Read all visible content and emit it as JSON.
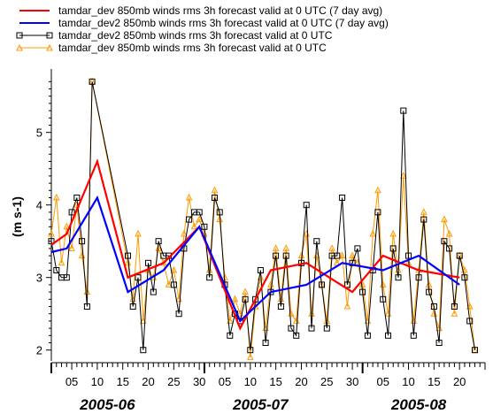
{
  "chart_data": {
    "type": "line",
    "title": "",
    "xlabel": "",
    "ylabel": "(m s-1)",
    "ylim": [
      1.85,
      5.85
    ],
    "yticks": [
      2,
      3,
      4,
      5
    ],
    "x_range": [
      "2005-06-01",
      "2005-08-25"
    ],
    "xtick_labels": [
      {
        "date": "2005-06-05",
        "label": "05"
      },
      {
        "date": "2005-06-10",
        "label": "10"
      },
      {
        "date": "2005-06-15",
        "label": "15"
      },
      {
        "date": "2005-06-20",
        "label": "20"
      },
      {
        "date": "2005-06-25",
        "label": "25"
      },
      {
        "date": "2005-06-30",
        "label": "30"
      },
      {
        "date": "2005-07-05",
        "label": "05"
      },
      {
        "date": "2005-07-10",
        "label": "10"
      },
      {
        "date": "2005-07-15",
        "label": "15"
      },
      {
        "date": "2005-07-20",
        "label": "20"
      },
      {
        "date": "2005-07-25",
        "label": "25"
      },
      {
        "date": "2005-07-30",
        "label": "30"
      },
      {
        "date": "2005-08-05",
        "label": "05"
      },
      {
        "date": "2005-08-10",
        "label": "10"
      },
      {
        "date": "2005-08-15",
        "label": "15"
      },
      {
        "date": "2005-08-20",
        "label": "20"
      }
    ],
    "month_labels": [
      {
        "date": "2005-06-12",
        "label": "2005-06"
      },
      {
        "date": "2005-07-12",
        "label": "2005-07"
      },
      {
        "date": "2005-08-12",
        "label": "2005-08"
      }
    ],
    "legend_position": "top",
    "series": [
      {
        "name": "tamdar_dev 850mb winds rms 3h forecast valid at 0 UTC (7 day avg)",
        "color": "#ff0000",
        "marker": "none",
        "x": [
          "2005-06-01",
          "2005-06-04",
          "2005-06-10",
          "2005-06-16",
          "2005-06-23",
          "2005-06-30",
          "2005-07-08",
          "2005-07-14",
          "2005-07-21",
          "2005-07-30",
          "2005-08-05",
          "2005-08-12",
          "2005-08-20"
        ],
        "y": [
          3.45,
          3.6,
          4.6,
          3.0,
          3.2,
          3.7,
          2.3,
          3.1,
          3.2,
          2.8,
          3.3,
          3.1,
          3.0
        ]
      },
      {
        "name": "tamdar_dev2 850mb winds rms 3h forecast valid at 0 UTC (7 day avg)",
        "color": "#0000ff",
        "marker": "none",
        "x": [
          "2005-06-01",
          "2005-06-04",
          "2005-06-10",
          "2005-06-16",
          "2005-06-23",
          "2005-06-30",
          "2005-07-08",
          "2005-07-14",
          "2005-07-21",
          "2005-07-28",
          "2005-08-05",
          "2005-08-12",
          "2005-08-20"
        ],
        "y": [
          3.35,
          3.4,
          4.1,
          2.8,
          3.1,
          3.7,
          2.4,
          2.8,
          2.9,
          3.2,
          3.1,
          3.3,
          2.9
        ]
      },
      {
        "name": "tamdar_dev2 850mb winds rms 3h forecast valid at 0 UTC",
        "color": "#000000",
        "marker": "square",
        "x": [
          "2005-06-01",
          "2005-06-02",
          "2005-06-03",
          "2005-06-04",
          "2005-06-05",
          "2005-06-06",
          "2005-06-07",
          "2005-06-08",
          "2005-06-09",
          "2005-06-16",
          "2005-06-17",
          "2005-06-18",
          "2005-06-19",
          "2005-06-20",
          "2005-06-21",
          "2005-06-22",
          "2005-06-23",
          "2005-06-24",
          "2005-06-25",
          "2005-06-26",
          "2005-06-27",
          "2005-06-28",
          "2005-06-29",
          "2005-06-30",
          "2005-07-01",
          "2005-07-02",
          "2005-07-03",
          "2005-07-04",
          "2005-07-05",
          "2005-07-06",
          "2005-07-07",
          "2005-07-08",
          "2005-07-09",
          "2005-07-10",
          "2005-07-11",
          "2005-07-12",
          "2005-07-13",
          "2005-07-14",
          "2005-07-15",
          "2005-07-16",
          "2005-07-17",
          "2005-07-18",
          "2005-07-19",
          "2005-07-20",
          "2005-07-21",
          "2005-07-22",
          "2005-07-23",
          "2005-07-24",
          "2005-07-25",
          "2005-07-26",
          "2005-07-27",
          "2005-07-28",
          "2005-07-29",
          "2005-07-30",
          "2005-07-31",
          "2005-08-01",
          "2005-08-02",
          "2005-08-03",
          "2005-08-04",
          "2005-08-05",
          "2005-08-06",
          "2005-08-07",
          "2005-08-08",
          "2005-08-09",
          "2005-08-10",
          "2005-08-11",
          "2005-08-12",
          "2005-08-13",
          "2005-08-14",
          "2005-08-15",
          "2005-08-16",
          "2005-08-17",
          "2005-08-18",
          "2005-08-19",
          "2005-08-20",
          "2005-08-21",
          "2005-08-22",
          "2005-08-23"
        ],
        "y": [
          3.5,
          3.1,
          3.0,
          3.0,
          3.9,
          4.1,
          3.5,
          2.6,
          5.7,
          3.3,
          2.6,
          3.0,
          2.0,
          3.2,
          2.8,
          3.5,
          3.3,
          3.3,
          2.9,
          2.5,
          3.4,
          3.8,
          3.9,
          3.9,
          3.7,
          3.0,
          4.1,
          3.9,
          2.9,
          2.2,
          2.5,
          2.4,
          2.7,
          2.0,
          2.7,
          3.1,
          2.1,
          2.8,
          3.3,
          2.6,
          3.3,
          2.3,
          2.2,
          3.2,
          4.0,
          2.3,
          3.5,
          2.9,
          2.3,
          3.3,
          3.3,
          4.1,
          2.9,
          3.2,
          3.4,
          2.8,
          2.2,
          3.1,
          3.9,
          2.7,
          2.2,
          3.4,
          3.0,
          5.3,
          3.3,
          2.2,
          3.0,
          3.8,
          2.8,
          2.6,
          2.1,
          3.5,
          3.4,
          2.6,
          3.3,
          3.0,
          2.4,
          2.0
        ]
      },
      {
        "name": "tamdar_dev 850mb winds rms 3h forecast valid at 0 UTC",
        "color": "#ff9900",
        "marker": "triangle",
        "x": [
          "2005-06-01",
          "2005-06-02",
          "2005-06-03",
          "2005-06-04",
          "2005-06-05",
          "2005-06-06",
          "2005-06-07",
          "2005-06-08",
          "2005-06-09",
          "2005-06-16",
          "2005-06-17",
          "2005-06-18",
          "2005-06-19",
          "2005-06-20",
          "2005-06-21",
          "2005-06-22",
          "2005-06-23",
          "2005-06-24",
          "2005-06-25",
          "2005-06-26",
          "2005-06-27",
          "2005-06-28",
          "2005-06-29",
          "2005-06-30",
          "2005-07-01",
          "2005-07-02",
          "2005-07-03",
          "2005-07-04",
          "2005-07-05",
          "2005-07-06",
          "2005-07-07",
          "2005-07-08",
          "2005-07-09",
          "2005-07-10",
          "2005-07-11",
          "2005-07-12",
          "2005-07-13",
          "2005-07-14",
          "2005-07-15",
          "2005-07-16",
          "2005-07-17",
          "2005-07-18",
          "2005-07-19",
          "2005-07-20",
          "2005-07-21",
          "2005-07-22",
          "2005-07-23",
          "2005-07-24",
          "2005-07-25",
          "2005-07-26",
          "2005-07-27",
          "2005-07-28",
          "2005-07-29",
          "2005-07-30",
          "2005-07-31",
          "2005-08-01",
          "2005-08-02",
          "2005-08-03",
          "2005-08-04",
          "2005-08-05",
          "2005-08-06",
          "2005-08-07",
          "2005-08-08",
          "2005-08-09",
          "2005-08-10",
          "2005-08-11",
          "2005-08-12",
          "2005-08-13",
          "2005-08-14",
          "2005-08-15",
          "2005-08-16",
          "2005-08-17",
          "2005-08-18",
          "2005-08-19",
          "2005-08-20",
          "2005-08-21",
          "2005-08-22",
          "2005-08-23"
        ],
        "y": [
          3.6,
          4.1,
          3.2,
          3.7,
          3.4,
          4.0,
          3.3,
          2.8,
          5.7,
          3.2,
          2.7,
          3.6,
          2.4,
          3.1,
          3.0,
          3.4,
          3.2,
          2.9,
          3.1,
          2.7,
          3.6,
          4.1,
          3.7,
          3.8,
          3.6,
          3.1,
          4.2,
          3.8,
          3.0,
          2.4,
          2.7,
          2.5,
          2.8,
          1.9,
          2.6,
          3.0,
          2.3,
          2.9,
          3.4,
          2.7,
          3.4,
          2.5,
          2.4,
          3.3,
          3.6,
          2.5,
          3.3,
          2.9,
          2.4,
          3.4,
          3.2,
          3.3,
          2.6,
          3.3,
          3.2,
          2.9,
          2.4,
          3.6,
          4.2,
          2.9,
          2.5,
          3.6,
          3.1,
          4.4,
          3.2,
          2.4,
          3.1,
          3.9,
          2.9,
          2.5,
          2.3,
          3.8,
          3.6,
          2.5,
          3.3,
          3.1,
          2.6,
          2.0
        ]
      }
    ]
  }
}
